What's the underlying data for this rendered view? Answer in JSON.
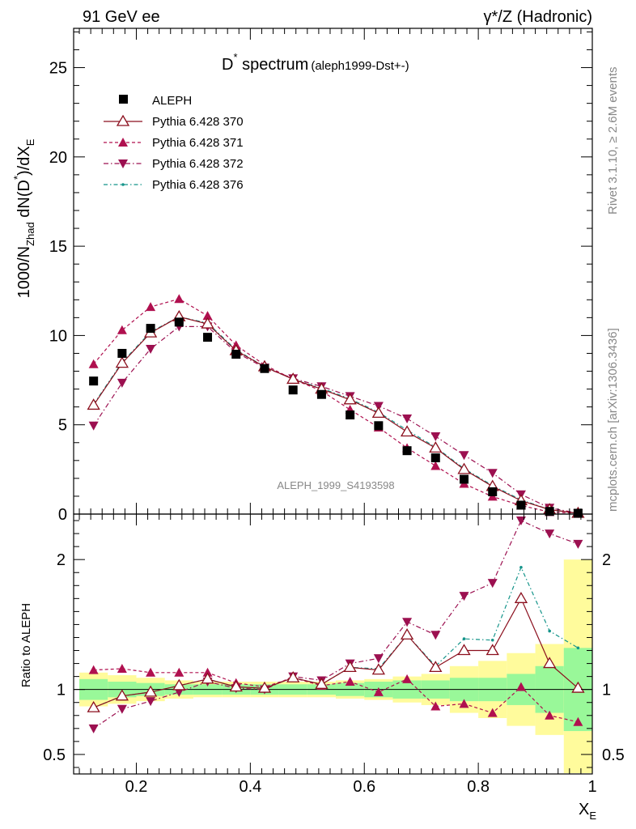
{
  "header": {
    "left": "91 GeV ee",
    "right": "γ*/Z (Hadronic)"
  },
  "side": {
    "rivet": "Rivet 3.1.10, ≥ 2.6M events",
    "mcplots": "mcplots.cern.ch [arXiv:1306.3436]"
  },
  "title": {
    "main": "D",
    "sup": "*",
    "rest": " spectrum",
    "small": "(aleph1999-Dst+-)"
  },
  "watermark": "ALEPH_1999_S4193598",
  "axes": {
    "ylabel_main": "1000/N",
    "ylabel_sub1": "Zhad",
    "ylabel_mid": " dN(D",
    "ylabel_sup": "*",
    "ylabel_end": ")/dX",
    "ylabel_sub2": "E",
    "ylabel_ratio": "Ratio to ALEPH",
    "xlabel_main": "X",
    "xlabel_sub": "E"
  },
  "colors": {
    "data": "#000000",
    "p370": "#8b0f1d",
    "p371": "#b0104f",
    "p372": "#9c1050",
    "p376": "#14948a",
    "band_inner": "#99f899",
    "band_outer": "#fffb9c"
  },
  "chart_data": {
    "type": "line",
    "x": [
      0.125,
      0.175,
      0.225,
      0.275,
      0.325,
      0.375,
      0.425,
      0.475,
      0.525,
      0.575,
      0.625,
      0.675,
      0.725,
      0.775,
      0.825,
      0.875,
      0.925,
      0.975
    ],
    "xlim": [
      0.09,
      1.0
    ],
    "ylim": [
      0,
      27.2
    ],
    "xticks": [
      0.2,
      0.4,
      0.6,
      0.8,
      1
    ],
    "yticks": [
      0,
      5,
      10,
      15,
      20,
      25
    ],
    "ratio_ylim": [
      0.35,
      2.35
    ],
    "ratio_yticks": [
      0.5,
      1,
      2
    ],
    "series": [
      {
        "name": "ALEPH",
        "values": [
          7.45,
          9.0,
          10.4,
          10.75,
          9.9,
          8.95,
          8.15,
          6.95,
          6.7,
          5.55,
          4.95,
          3.55,
          3.15,
          1.95,
          1.25,
          0.5,
          0.15,
          0.02
        ]
      },
      {
        "name": "Pythia 6.428 370",
        "values": [
          6.1,
          8.45,
          10.15,
          11.05,
          10.65,
          9.15,
          8.25,
          7.55,
          7.0,
          6.4,
          5.65,
          4.6,
          3.7,
          2.5,
          1.55,
          0.75,
          0.25,
          0.03
        ]
      },
      {
        "name": "Pythia 6.428 371",
        "values": [
          8.4,
          10.3,
          11.6,
          12.05,
          11.1,
          9.45,
          8.35,
          7.55,
          6.9,
          5.85,
          4.85,
          3.7,
          2.7,
          1.7,
          0.98,
          0.48,
          0.12,
          0.02
        ]
      },
      {
        "name": "Pythia 6.428 372",
        "values": [
          4.95,
          7.35,
          9.25,
          10.5,
          10.5,
          9.05,
          8.2,
          7.6,
          7.15,
          6.6,
          6.05,
          5.35,
          4.35,
          3.3,
          2.3,
          1.1,
          0.35,
          0.05
        ]
      },
      {
        "name": "Pythia 6.428 376",
        "values": [
          6.15,
          8.5,
          10.2,
          11.05,
          10.7,
          9.2,
          8.25,
          7.55,
          7.05,
          6.45,
          5.7,
          4.7,
          3.75,
          2.55,
          1.6,
          0.8,
          0.25,
          0.03
        ]
      }
    ],
    "ratios": [
      {
        "name": "Pythia 6.428 370",
        "values": [
          0.86,
          0.95,
          0.98,
          1.03,
          1.08,
          1.02,
          1.01,
          1.09,
          1.04,
          1.17,
          1.15,
          1.42,
          1.17,
          1.3,
          1.3,
          1.7,
          1.2,
          1.01
        ]
      },
      {
        "name": "Pythia 6.428 371",
        "values": [
          1.15,
          1.16,
          1.13,
          1.13,
          1.13,
          1.05,
          1.02,
          1.09,
          1.03,
          1.06,
          0.98,
          1.08,
          0.87,
          0.89,
          0.82,
          1.02,
          0.8,
          0.75
        ]
      },
      {
        "name": "Pythia 6.428 372",
        "values": [
          0.7,
          0.85,
          0.91,
          0.98,
          1.06,
          1.01,
          1.0,
          1.1,
          1.07,
          1.2,
          1.24,
          1.52,
          1.42,
          1.72,
          1.82,
          2.3,
          2.2,
          2.12
        ]
      },
      {
        "name": "Pythia 6.428 376",
        "values": [
          0.86,
          0.95,
          0.98,
          1.03,
          1.08,
          1.02,
          1.01,
          1.09,
          1.04,
          1.17,
          1.16,
          1.42,
          1.18,
          1.39,
          1.38,
          1.94,
          1.45,
          1.32
        ]
      }
    ],
    "uncertainty_band": {
      "inner": [
        0.08,
        0.06,
        0.05,
        0.04,
        0.04,
        0.04,
        0.04,
        0.04,
        0.04,
        0.05,
        0.06,
        0.07,
        0.07,
        0.09,
        0.09,
        0.12,
        0.18,
        0.32
      ],
      "outer": [
        0.13,
        0.11,
        0.09,
        0.07,
        0.06,
        0.06,
        0.06,
        0.06,
        0.06,
        0.07,
        0.08,
        0.1,
        0.12,
        0.18,
        0.22,
        0.28,
        0.35,
        1.0
      ]
    },
    "legend_position": "top-left"
  }
}
